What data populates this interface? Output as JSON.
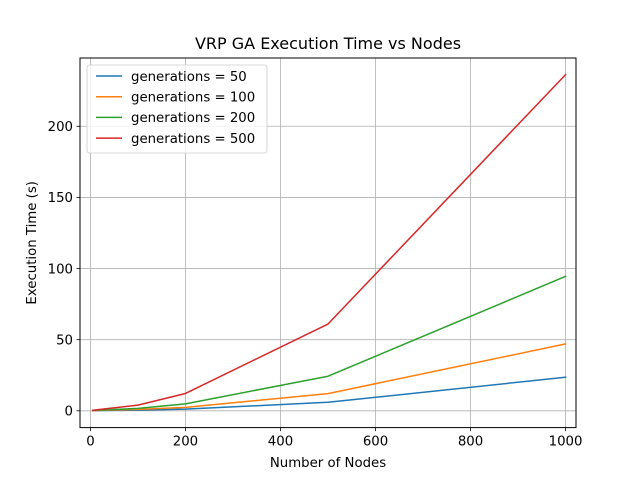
{
  "chart_data": {
    "type": "line",
    "title": "VRP GA Execution Time vs Nodes",
    "xlabel": "Number of Nodes",
    "ylabel": "Execution Time (s)",
    "xlim": [
      -22,
      1022
    ],
    "ylim": [
      -11.8,
      248
    ],
    "xticks": [
      0,
      200,
      400,
      600,
      800,
      1000
    ],
    "yticks": [
      0,
      50,
      100,
      150,
      200
    ],
    "grid": true,
    "legend_position": "top-left",
    "x": [
      5,
      100,
      200,
      500,
      1000
    ],
    "series": [
      {
        "name": "generations = 50",
        "color": "#1f77b4",
        "values": [
          0.1,
          0.5,
          1.2,
          6.0,
          23.6
        ]
      },
      {
        "name": "generations = 100",
        "color": "#ff7f0e",
        "values": [
          0.2,
          1.0,
          2.4,
          12.1,
          47.0
        ]
      },
      {
        "name": "generations = 200",
        "color": "#2ca02c",
        "values": [
          0.3,
          1.7,
          4.9,
          24.3,
          94.5
        ]
      },
      {
        "name": "generations = 500",
        "color": "#d62728",
        "values": [
          0.4,
          4.0,
          12.2,
          61.0,
          236.3
        ]
      }
    ]
  }
}
